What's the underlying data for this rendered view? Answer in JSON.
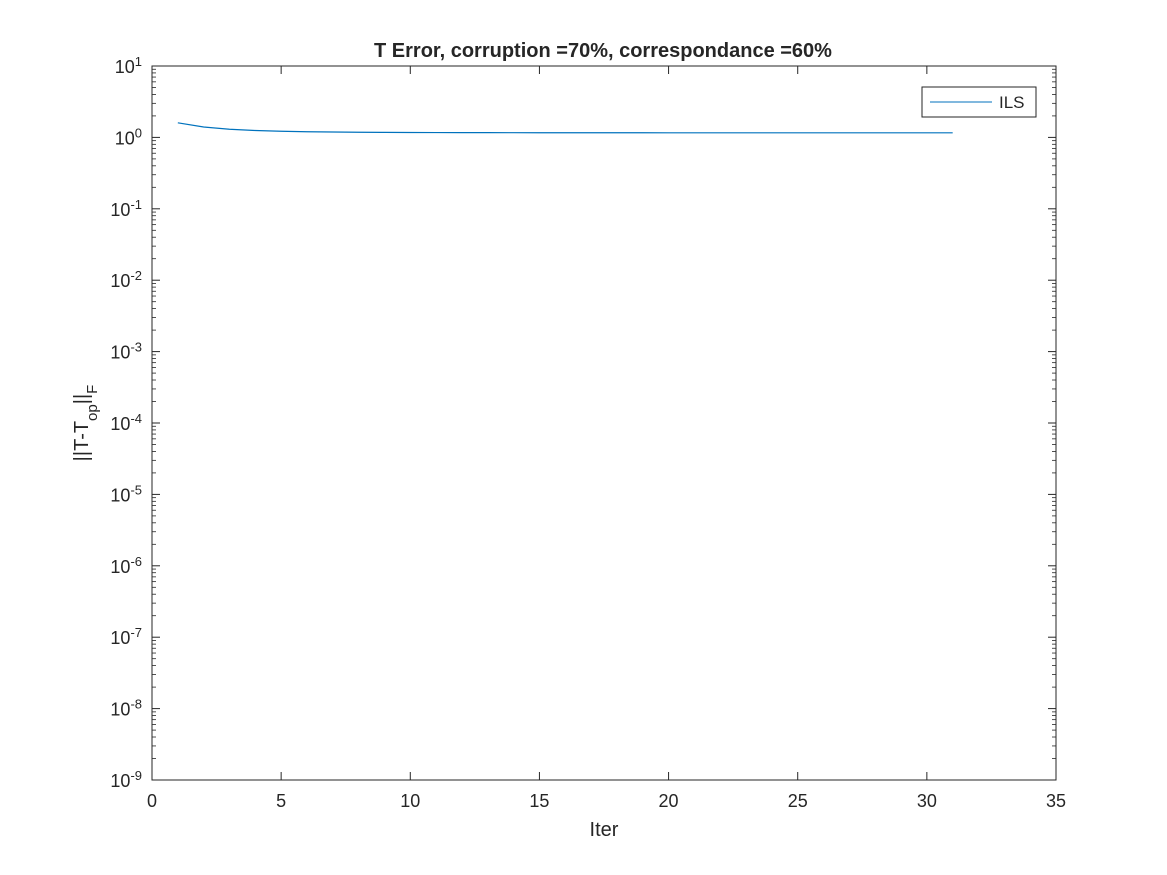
{
  "chart_data": {
    "type": "line",
    "title": "T Error, corruption =70%, correspondance =60%",
    "xlabel": "Iter",
    "ylabel": {
      "base": "||T-T",
      "subscript": "op",
      "suffix": "||",
      "suffix_subscript": "F"
    },
    "xlim": [
      0,
      35
    ],
    "ylim": [
      1e-09,
      10
    ],
    "yscale": "log",
    "xticks": [
      0,
      5,
      10,
      15,
      20,
      25,
      30,
      35
    ],
    "xtick_labels": [
      "0",
      "5",
      "10",
      "15",
      "20",
      "25",
      "30",
      "35"
    ],
    "yticks_exponents": [
      -9,
      -8,
      -7,
      -6,
      -5,
      -4,
      -3,
      -2,
      -1,
      0,
      1
    ],
    "ytick_labels": [
      {
        "base": "10",
        "exp": "-9"
      },
      {
        "base": "10",
        "exp": "-8"
      },
      {
        "base": "10",
        "exp": "-7"
      },
      {
        "base": "10",
        "exp": "-6"
      },
      {
        "base": "10",
        "exp": "-5"
      },
      {
        "base": "10",
        "exp": "-4"
      },
      {
        "base": "10",
        "exp": "-3"
      },
      {
        "base": "10",
        "exp": "-2"
      },
      {
        "base": "10",
        "exp": "-1"
      },
      {
        "base": "10",
        "exp": "0"
      },
      {
        "base": "10",
        "exp": "1"
      }
    ],
    "grid": false,
    "legend_position": "top-right",
    "series": [
      {
        "name": "ILS",
        "color": "#0072bd",
        "x": [
          1,
          2,
          3,
          4,
          5,
          6,
          7,
          8,
          9,
          10,
          11,
          12,
          13,
          14,
          15,
          16,
          17,
          18,
          19,
          20,
          21,
          22,
          23,
          24,
          25,
          26,
          27,
          28,
          29,
          30,
          31
        ],
        "y": [
          1.6,
          1.4,
          1.3,
          1.25,
          1.22,
          1.2,
          1.19,
          1.18,
          1.175,
          1.17,
          1.168,
          1.166,
          1.165,
          1.164,
          1.163,
          1.162,
          1.162,
          1.161,
          1.161,
          1.16,
          1.16,
          1.16,
          1.16,
          1.16,
          1.16,
          1.16,
          1.16,
          1.16,
          1.16,
          1.16,
          1.16
        ]
      }
    ]
  },
  "colors": {
    "axis": "#262626",
    "background": "#ffffff",
    "series_line": "#0072bd"
  }
}
